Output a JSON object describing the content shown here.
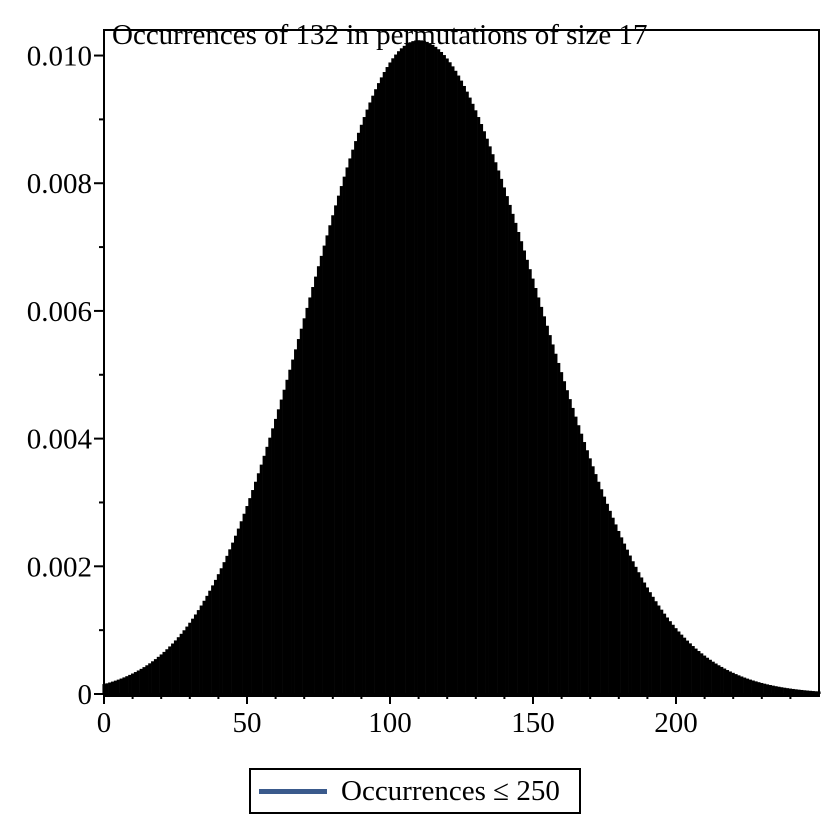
{
  "chart_data": {
    "type": "bar",
    "title": "Occurrences of 132 in permutations of size 17",
    "xlabel": "",
    "ylabel": "",
    "xlim": [
      0,
      250
    ],
    "ylim": [
      0,
      0.0104
    ],
    "x_ticks": [
      "0",
      "50",
      "100",
      "150",
      "200"
    ],
    "y_ticks": [
      "0",
      "0.002",
      "0.004",
      "0.006",
      "0.008",
      "0.010"
    ],
    "distribution": {
      "x_min": 0,
      "x_max": 250,
      "mode": 110,
      "peak": 0.01024,
      "sd_left": 38,
      "sd_right": 42
    },
    "series": [
      {
        "name": "Occurrences ≤ 250",
        "color": "#000000"
      }
    ],
    "legend_position": "bottom"
  },
  "legend": {
    "label": "Occurrences ≤ 250",
    "swatch_color": "#3a5a8c"
  }
}
